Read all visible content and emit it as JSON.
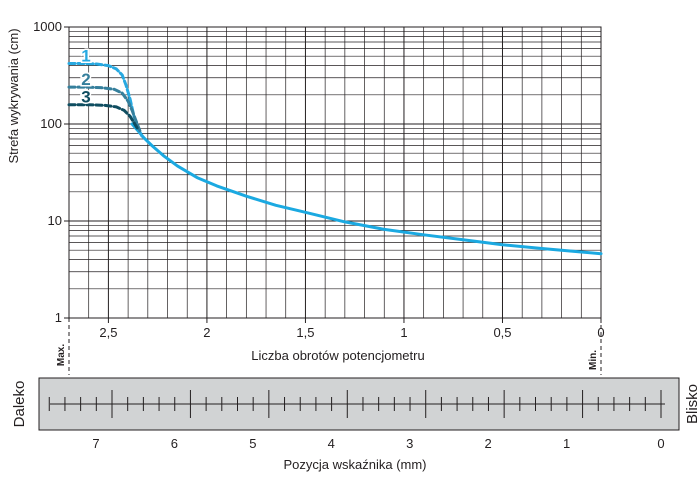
{
  "chart_data": {
    "type": "line",
    "title": "",
    "xlabel": "Liczba obrotów potencjometru",
    "ylabel": "Strefa wykrywania (cm)",
    "x_scale": "linear-reversed",
    "y_scale": "log",
    "xlim": [
      2.7,
      0
    ],
    "ylim": [
      1,
      1000
    ],
    "grid": true,
    "x_ticks": [
      "2,5",
      "2",
      "1,5",
      "1",
      "0,5",
      "0"
    ],
    "x_tick_values": [
      2.5,
      2,
      1.5,
      1,
      0.5,
      0
    ],
    "y_ticks": [
      "1",
      "10",
      "100",
      "1000"
    ],
    "y_tick_values": [
      1,
      10,
      100,
      1000
    ],
    "end_labels": {
      "left": "Max.",
      "right": "Min."
    },
    "series": [
      {
        "name": "",
        "style": "solid",
        "color": "#1ba9e1",
        "x": [
          2.38,
          2.35,
          2.32,
          2.28,
          2.22,
          2.15,
          2.05,
          1.95,
          1.8,
          1.65,
          1.5,
          1.3,
          1.1,
          0.9,
          0.7,
          0.5,
          0.3,
          0.15,
          0.0
        ],
        "y": [
          100,
          85,
          72,
          60,
          47,
          37,
          28,
          23,
          18,
          14.5,
          12.3,
          9.8,
          8.2,
          7.2,
          6.4,
          5.7,
          5.2,
          4.9,
          4.6
        ]
      },
      {
        "name": "1",
        "style": "dashed",
        "color": "#27a9e1",
        "x": [
          2.7,
          2.62,
          2.56,
          2.5,
          2.46,
          2.43,
          2.41,
          2.39,
          2.37,
          2.35,
          2.33
        ],
        "y": [
          420,
          420,
          415,
          400,
          370,
          320,
          250,
          180,
          120,
          90,
          75
        ]
      },
      {
        "name": "2",
        "style": "dashed",
        "color": "#357f9c",
        "x": [
          2.7,
          2.62,
          2.54,
          2.47,
          2.43,
          2.4,
          2.38,
          2.36,
          2.34
        ],
        "y": [
          240,
          240,
          237,
          228,
          208,
          172,
          138,
          108,
          85
        ]
      },
      {
        "name": "3",
        "style": "dashed",
        "color": "#0f4d60",
        "x": [
          2.7,
          2.6,
          2.52,
          2.46,
          2.42,
          2.39,
          2.37,
          2.35
        ],
        "y": [
          158,
          158,
          156,
          150,
          138,
          120,
          103,
          88
        ]
      }
    ]
  },
  "scale_bar": {
    "left_label": "Daleko",
    "right_label": "Blisko",
    "xlabel": "Pozycja wskaźnika (mm)",
    "tick_labels": [
      "7",
      "6",
      "5",
      "4",
      "3",
      "2",
      "1",
      "0"
    ],
    "tick_values": [
      7,
      6,
      5,
      4,
      3,
      2,
      1,
      0
    ],
    "fill_color": "#d1d3d4"
  }
}
